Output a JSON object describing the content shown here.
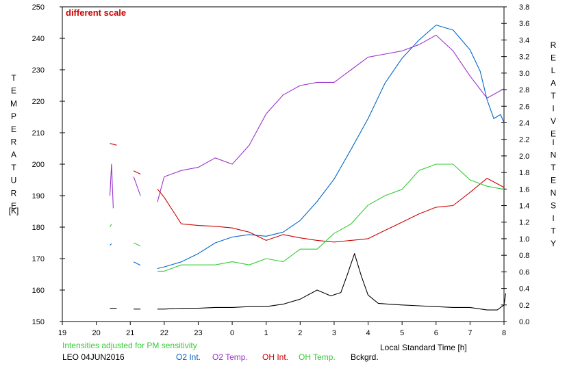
{
  "chart_data": {
    "type": "line",
    "note": "different scale",
    "bottom_left_note": "Intensities adjusted for PM sensitivity",
    "station_label": "LEO 04JUN2016",
    "xlabel": "Local Standard Time [h]",
    "ylabel_left": "TEMPERATURE",
    "ylabel_left_unit": "[K]",
    "ylabel_right": "RELATIVE INTENSITY",
    "x_ticks": [
      "19",
      "20",
      "21",
      "22",
      "23",
      "0",
      "1",
      "2",
      "3",
      "4",
      "5",
      "6",
      "7",
      "8"
    ],
    "xlim": [
      19,
      32
    ],
    "ylim_left": [
      150,
      250
    ],
    "ylim_right": [
      0.0,
      3.8
    ],
    "y_left_ticks": [
      150,
      160,
      170,
      180,
      190,
      200,
      210,
      220,
      230,
      240,
      250
    ],
    "y_right_ticks": [
      "0.0",
      "0.2",
      "0.4",
      "0.6",
      "0.8",
      "1.0",
      "1.2",
      "1.4",
      "1.6",
      "1.8",
      "2.0",
      "2.2",
      "2.4",
      "2.6",
      "2.8",
      "3.0",
      "3.2",
      "3.4",
      "3.6",
      "3.8"
    ],
    "grid": false,
    "legend_position": "bottom",
    "colors": {
      "o2_int": "#0066cc",
      "o2_temp": "#9933cc",
      "oh_int": "#cc0000",
      "oh_temp": "#33cc33",
      "bckgrd": "#000000",
      "note_red": "#cc0000",
      "note_green": "#33cc33"
    },
    "series": [
      {
        "name": "O2 Int.",
        "axis": "right",
        "segments": [
          [
            [
              20.4,
              0.92
            ],
            [
              20.45,
              0.94
            ]
          ],
          [
            [
              21.1,
              0.72
            ],
            [
              21.3,
              0.68
            ]
          ],
          [
            [
              21.8,
              0.64
            ],
            [
              22.0,
              0.66
            ],
            [
              22.5,
              0.72
            ],
            [
              23.0,
              0.82
            ],
            [
              23.5,
              0.95
            ],
            [
              24.0,
              1.02
            ],
            [
              24.5,
              1.05
            ],
            [
              25.0,
              1.03
            ],
            [
              25.5,
              1.08
            ],
            [
              26.0,
              1.22
            ],
            [
              26.5,
              1.45
            ],
            [
              27.0,
              1.72
            ],
            [
              27.5,
              2.08
            ],
            [
              28.0,
              2.45
            ],
            [
              28.5,
              2.88
            ],
            [
              29.0,
              3.18
            ],
            [
              29.5,
              3.4
            ],
            [
              30.0,
              3.58
            ],
            [
              30.5,
              3.52
            ],
            [
              31.0,
              3.28
            ],
            [
              31.3,
              3.02
            ],
            [
              31.5,
              2.68
            ],
            [
              31.7,
              2.45
            ],
            [
              31.9,
              2.5
            ],
            [
              32.0,
              2.4
            ]
          ]
        ]
      },
      {
        "name": "O2 Temp.",
        "axis": "left",
        "segments": [
          [
            [
              20.4,
              190
            ],
            [
              20.45,
              200
            ],
            [
              20.5,
              186
            ]
          ],
          [
            [
              21.1,
              196
            ],
            [
              21.3,
              190
            ]
          ],
          [
            [
              21.8,
              188
            ],
            [
              22.0,
              196
            ],
            [
              22.5,
              198
            ],
            [
              23.0,
              199
            ],
            [
              23.5,
              202
            ],
            [
              24.0,
              200
            ],
            [
              24.5,
              206
            ],
            [
              25.0,
              216
            ],
            [
              25.5,
              222
            ],
            [
              26.0,
              225
            ],
            [
              26.5,
              226
            ],
            [
              27.0,
              226
            ],
            [
              27.5,
              230
            ],
            [
              28.0,
              234
            ],
            [
              28.5,
              235
            ],
            [
              29.0,
              236
            ],
            [
              29.5,
              238
            ],
            [
              30.0,
              241
            ],
            [
              30.5,
              236
            ],
            [
              31.0,
              228
            ],
            [
              31.5,
              221
            ],
            [
              32.0,
              224
            ]
          ]
        ]
      },
      {
        "name": "OH Int.",
        "axis": "right",
        "segments": [
          [
            [
              20.4,
              2.15
            ],
            [
              20.6,
              2.13
            ]
          ],
          [
            [
              21.1,
              1.82
            ],
            [
              21.3,
              1.78
            ]
          ],
          [
            [
              21.8,
              1.6
            ],
            [
              22.0,
              1.5
            ],
            [
              22.5,
              1.18
            ],
            [
              23.0,
              1.16
            ],
            [
              23.5,
              1.15
            ],
            [
              24.0,
              1.13
            ],
            [
              24.5,
              1.08
            ],
            [
              25.0,
              0.98
            ],
            [
              25.5,
              1.05
            ],
            [
              26.0,
              1.01
            ],
            [
              26.5,
              0.98
            ],
            [
              27.0,
              0.96
            ],
            [
              27.5,
              0.98
            ],
            [
              28.0,
              1.0
            ],
            [
              28.5,
              1.1
            ],
            [
              29.0,
              1.2
            ],
            [
              29.5,
              1.3
            ],
            [
              30.0,
              1.38
            ],
            [
              30.5,
              1.4
            ],
            [
              31.0,
              1.56
            ],
            [
              31.5,
              1.73
            ],
            [
              32.0,
              1.62
            ]
          ]
        ]
      },
      {
        "name": "OH Temp.",
        "axis": "left",
        "segments": [
          [
            [
              20.4,
              180
            ],
            [
              20.45,
              181
            ]
          ],
          [
            [
              21.1,
              175
            ],
            [
              21.3,
              174
            ]
          ],
          [
            [
              21.8,
              166
            ],
            [
              22.0,
              166
            ],
            [
              22.5,
              168
            ],
            [
              23.0,
              168
            ],
            [
              23.5,
              168
            ],
            [
              24.0,
              169
            ],
            [
              24.5,
              168
            ],
            [
              25.0,
              170
            ],
            [
              25.5,
              169
            ],
            [
              26.0,
              173
            ],
            [
              26.5,
              173
            ],
            [
              27.0,
              178
            ],
            [
              27.5,
              181
            ],
            [
              28.0,
              187
            ],
            [
              28.5,
              190
            ],
            [
              29.0,
              192
            ],
            [
              29.5,
              198
            ],
            [
              30.0,
              200
            ],
            [
              30.5,
              200
            ],
            [
              31.0,
              195
            ],
            [
              31.5,
              193
            ],
            [
              32.0,
              192
            ]
          ]
        ]
      },
      {
        "name": "Bckgrd.",
        "axis": "right",
        "segments": [
          [
            [
              20.4,
              0.16
            ],
            [
              20.6,
              0.16
            ]
          ],
          [
            [
              21.1,
              0.15
            ],
            [
              21.3,
              0.15
            ]
          ],
          [
            [
              21.8,
              0.15
            ],
            [
              22.0,
              0.15
            ],
            [
              22.5,
              0.16
            ],
            [
              23.0,
              0.16
            ],
            [
              23.5,
              0.17
            ],
            [
              24.0,
              0.17
            ],
            [
              24.5,
              0.18
            ],
            [
              25.0,
              0.18
            ],
            [
              25.5,
              0.21
            ],
            [
              26.0,
              0.27
            ],
            [
              26.5,
              0.38
            ],
            [
              26.9,
              0.31
            ],
            [
              27.2,
              0.35
            ],
            [
              27.4,
              0.58
            ],
            [
              27.6,
              0.82
            ],
            [
              27.8,
              0.55
            ],
            [
              28.0,
              0.32
            ],
            [
              28.3,
              0.22
            ],
            [
              28.6,
              0.21
            ],
            [
              29.0,
              0.2
            ],
            [
              29.5,
              0.19
            ],
            [
              30.0,
              0.18
            ],
            [
              30.5,
              0.17
            ],
            [
              31.0,
              0.17
            ],
            [
              31.5,
              0.14
            ],
            [
              31.8,
              0.14
            ],
            [
              32.0,
              0.2
            ],
            [
              32.05,
              0.34
            ]
          ]
        ]
      }
    ]
  }
}
